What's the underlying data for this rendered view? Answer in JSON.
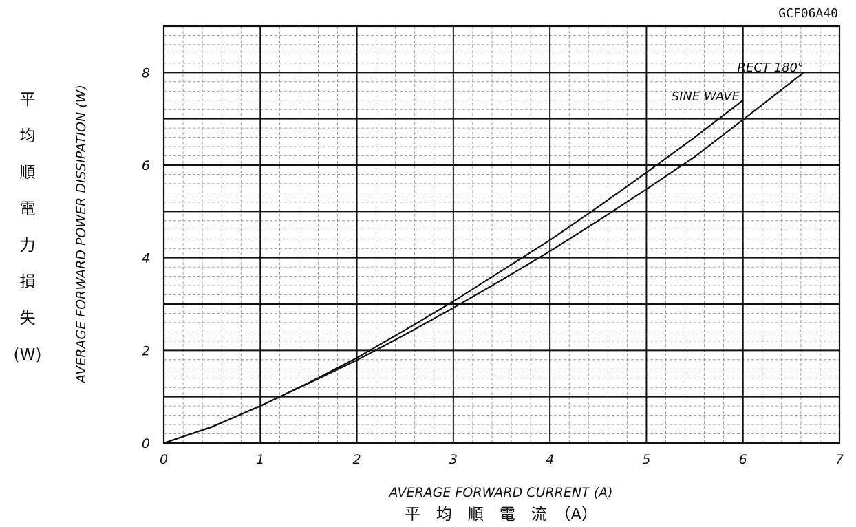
{
  "document_code": "GCF06A40",
  "y_axis_label_jp_chars": [
    "平",
    "均",
    "順",
    "電",
    "力",
    "損",
    "失",
    "(W)"
  ],
  "chart_data": {
    "type": "line",
    "title": "",
    "xlabel": "AVERAGE FORWARD CURRENT (A)",
    "xlabel_jp": "平　均　順　電　流　（A）",
    "ylabel": "AVERAGE FORWARD POWER DISSIPATION (W)",
    "ylabel_jp": "平均順電力損失 (W)",
    "xlim": [
      0,
      7
    ],
    "ylim": [
      0,
      9
    ],
    "x_major_ticks": [
      0,
      1,
      2,
      3,
      4,
      5,
      6,
      7
    ],
    "y_major_ticks": [
      0,
      2,
      4,
      6,
      8
    ],
    "x_minor_step": 0.2,
    "y_minor_step": 0.2,
    "grid": true,
    "legend": "annotated",
    "series": [
      {
        "name": "SINE WAVE",
        "x": [
          0,
          0.5,
          1.0,
          1.5,
          2.0,
          2.5,
          3.0,
          3.5,
          4.0,
          4.5,
          5.0,
          5.5,
          6.0
        ],
        "y": [
          0,
          0.35,
          0.8,
          1.3,
          1.84,
          2.44,
          3.06,
          3.72,
          4.38,
          5.1,
          5.84,
          6.6,
          7.4
        ]
      },
      {
        "name": "RECT 180°",
        "x": [
          0,
          0.5,
          1.0,
          1.5,
          2.0,
          2.5,
          3.0,
          3.5,
          4.0,
          4.5,
          5.0,
          5.5,
          6.0,
          6.63
        ],
        "y": [
          0,
          0.35,
          0.8,
          1.29,
          1.79,
          2.34,
          2.92,
          3.52,
          4.14,
          4.8,
          5.48,
          6.18,
          6.98,
          8.0
        ]
      }
    ]
  }
}
